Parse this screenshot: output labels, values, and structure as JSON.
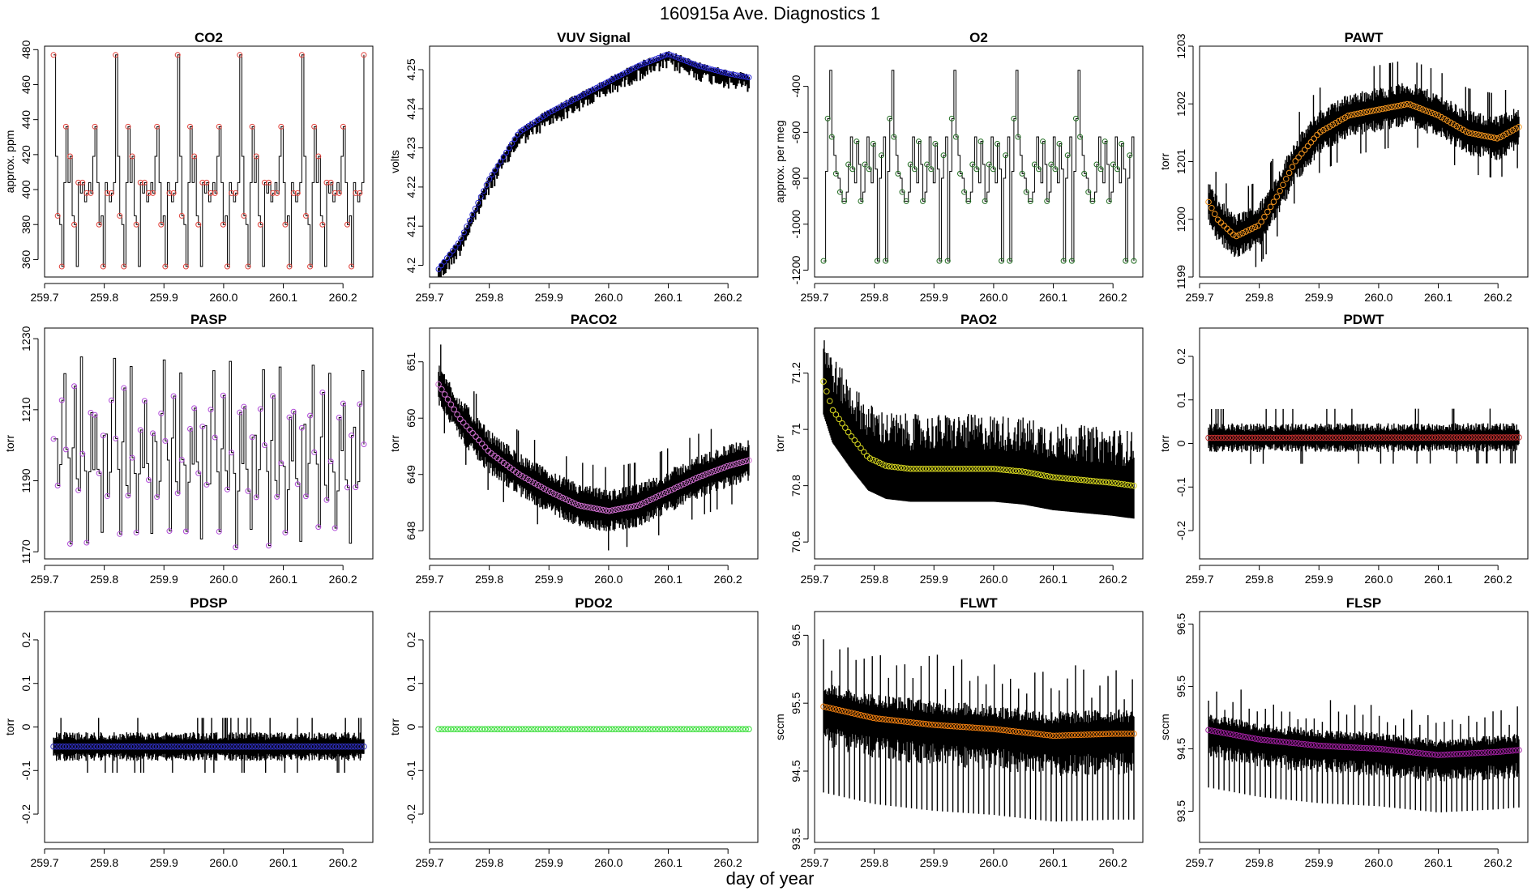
{
  "figure": {
    "title": "160915a   Ave. Diagnostics 1",
    "xlabel": "day of year"
  },
  "chart_data": [
    {
      "type": "line",
      "title": "CO2",
      "ylabel": "approx. ppm",
      "xlim": [
        259.7,
        260.25
      ],
      "ylim": [
        350,
        482
      ],
      "yticks": [
        360,
        380,
        400,
        420,
        440,
        460,
        480
      ],
      "xticks": [
        259.7,
        259.8,
        259.9,
        260.0,
        260.1,
        260.2
      ],
      "marker_color": "#e0413a",
      "pattern": "co2",
      "x_range": [
        259.715,
        260.235
      ],
      "note": "cycling calibration gas levels 356, 380, 385, 400, 404, 419, 436, 477"
    },
    {
      "type": "line",
      "title": "VUV Signal",
      "ylabel": "volts",
      "xlim": [
        259.7,
        260.25
      ],
      "ylim": [
        4.197,
        4.256
      ],
      "yticks": [
        4.2,
        4.21,
        4.22,
        4.23,
        4.24,
        4.25
      ],
      "xticks": [
        259.7,
        259.8,
        259.9,
        260.0,
        260.1,
        260.2
      ],
      "marker_color": "#2b2bd6",
      "pattern": "vuv",
      "x": [
        259.715,
        259.75,
        259.8,
        259.85,
        259.9,
        259.95,
        260.0,
        260.05,
        260.1,
        260.15,
        260.2,
        260.235
      ],
      "y": [
        4.199,
        4.206,
        4.222,
        4.234,
        4.239,
        4.243,
        4.247,
        4.251,
        4.254,
        4.251,
        4.249,
        4.248
      ]
    },
    {
      "type": "line",
      "title": "O2",
      "ylabel": "approx. per meg",
      "xlim": [
        259.7,
        260.25
      ],
      "ylim": [
        -1230,
        -225
      ],
      "yticks": [
        -1200,
        -1000,
        -800,
        -600,
        -400
      ],
      "xticks": [
        259.7,
        259.8,
        259.9,
        260.0,
        260.1,
        260.2
      ],
      "marker_color": "#1e6b1e",
      "pattern": "o2",
      "x_range": [
        259.715,
        260.235
      ],
      "note": "cycling calibration levels -1160 to -320"
    },
    {
      "type": "line",
      "title": "PAWT",
      "ylabel": "torr",
      "xlim": [
        259.7,
        260.25
      ],
      "ylim": [
        1199,
        1203
      ],
      "yticks": [
        1199,
        1200,
        1201,
        1202,
        1203
      ],
      "xticks": [
        259.7,
        259.8,
        259.9,
        260.0,
        260.1,
        260.2
      ],
      "marker_color": "#f5961e",
      "pattern": "noise",
      "x": [
        259.715,
        259.73,
        259.76,
        259.8,
        259.83,
        259.86,
        259.9,
        259.95,
        260.0,
        260.05,
        260.1,
        260.15,
        260.2,
        260.235
      ],
      "y": [
        1200.3,
        1200.0,
        1199.7,
        1199.9,
        1200.4,
        1201.0,
        1201.5,
        1201.8,
        1201.9,
        1202.0,
        1201.8,
        1201.5,
        1201.4,
        1201.6
      ],
      "spread": 0.35
    },
    {
      "type": "line",
      "title": "PASP",
      "ylabel": "torr",
      "xlim": [
        259.7,
        260.25
      ],
      "ylim": [
        1168,
        1233
      ],
      "yticks": [
        1170,
        1190,
        1210,
        1230
      ],
      "xticks": [
        259.7,
        259.8,
        259.9,
        260.0,
        260.1,
        260.2
      ],
      "marker_color": "#b04ad8",
      "pattern": "pasp",
      "x_range": [
        259.715,
        260.235
      ],
      "note": "sawtooth pressure pattern, values 1173 to 1230"
    },
    {
      "type": "line",
      "title": "PACO2",
      "ylabel": "torr",
      "xlim": [
        259.7,
        260.25
      ],
      "ylim": [
        647.5,
        651.6
      ],
      "yticks": [
        648,
        649,
        650,
        651
      ],
      "xticks": [
        259.7,
        259.8,
        259.9,
        260.0,
        260.1,
        260.2
      ],
      "marker_color": "#d06fd0",
      "pattern": "noise",
      "x": [
        259.715,
        259.75,
        259.8,
        259.85,
        259.9,
        259.95,
        260.0,
        260.05,
        260.1,
        260.15,
        260.2,
        260.235
      ],
      "y": [
        650.6,
        650.0,
        649.4,
        649.0,
        648.7,
        648.45,
        648.35,
        648.45,
        648.7,
        648.95,
        649.15,
        649.25
      ],
      "spread": 0.35
    },
    {
      "type": "line",
      "title": "PAO2",
      "ylabel": "torr",
      "xlim": [
        259.7,
        260.25
      ],
      "ylim": [
        70.54,
        71.36
      ],
      "yticks": [
        70.6,
        70.8,
        71.0,
        71.2
      ],
      "xticks": [
        259.7,
        259.8,
        259.9,
        260.0,
        260.1,
        260.2
      ],
      "marker_color": "#d8d820",
      "pattern": "pao2",
      "x": [
        259.715,
        259.73,
        259.76,
        259.79,
        259.82,
        259.86,
        259.9,
        259.95,
        260.0,
        260.05,
        260.1,
        260.15,
        260.2,
        260.235
      ],
      "y": [
        71.17,
        71.07,
        70.98,
        70.9,
        70.87,
        70.86,
        70.86,
        70.86,
        70.86,
        70.85,
        70.83,
        70.82,
        70.81,
        70.8
      ],
      "spread": 0.13
    },
    {
      "type": "line",
      "title": "PDWT",
      "ylabel": "torr",
      "xlim": [
        259.7,
        260.25
      ],
      "ylim": [
        -0.265,
        0.265
      ],
      "yticks": [
        -0.2,
        -0.1,
        0.0,
        0.1,
        0.2
      ],
      "xticks": [
        259.7,
        259.8,
        259.9,
        260.0,
        260.1,
        260.2
      ],
      "marker_color": "#c43030",
      "pattern": "noise",
      "x": [
        259.715,
        260.235
      ],
      "y": [
        0.013,
        0.014
      ],
      "spread": 0.03
    },
    {
      "type": "line",
      "title": "PDSP",
      "ylabel": "torr",
      "xlim": [
        259.7,
        260.25
      ],
      "ylim": [
        -0.265,
        0.265
      ],
      "yticks": [
        -0.2,
        -0.1,
        0.0,
        0.1,
        0.2
      ],
      "xticks": [
        259.7,
        259.8,
        259.9,
        260.0,
        260.1,
        260.2
      ],
      "marker_color": "#3030c0",
      "pattern": "noise",
      "x": [
        259.715,
        260.235
      ],
      "y": [
        -0.045,
        -0.045
      ],
      "spread": 0.03
    },
    {
      "type": "line",
      "title": "PDO2",
      "ylabel": "torr",
      "xlim": [
        259.7,
        260.25
      ],
      "ylim": [
        -0.265,
        0.265
      ],
      "yticks": [
        -0.2,
        -0.1,
        0.0,
        0.1,
        0.2
      ],
      "xticks": [
        259.7,
        259.8,
        259.9,
        260.0,
        260.1,
        260.2
      ],
      "marker_color": "#33dd33",
      "pattern": "flat",
      "x": [
        259.715,
        260.235
      ],
      "y": [
        -0.005,
        -0.005
      ],
      "spread": 0.0
    },
    {
      "type": "line",
      "title": "FLWT",
      "ylabel": "sccm",
      "xlim": [
        259.7,
        260.25
      ],
      "ylim": [
        93.45,
        96.85
      ],
      "yticks": [
        93.5,
        94.5,
        95.5,
        96.5
      ],
      "xticks": [
        259.7,
        259.8,
        259.9,
        260.0,
        260.1,
        260.2
      ],
      "marker_color": "#f07f10",
      "pattern": "flow",
      "x": [
        259.715,
        259.8,
        259.9,
        260.0,
        260.1,
        260.2,
        260.235
      ],
      "y": [
        95.45,
        95.28,
        95.18,
        95.12,
        95.02,
        95.05,
        95.05
      ],
      "spread": 0.55
    },
    {
      "type": "line",
      "title": "FLSP",
      "ylabel": "sccm",
      "xlim": [
        259.7,
        260.25
      ],
      "ylim": [
        93.0,
        96.7
      ],
      "yticks": [
        93.5,
        94.5,
        95.5,
        96.5
      ],
      "xticks": [
        259.7,
        259.8,
        259.9,
        260.0,
        260.1,
        260.2
      ],
      "marker_color": "#a020a0",
      "pattern": "flow",
      "x": [
        259.715,
        259.8,
        259.9,
        260.0,
        260.1,
        260.2,
        260.235
      ],
      "y": [
        94.8,
        94.65,
        94.55,
        94.5,
        94.4,
        94.45,
        94.48
      ],
      "spread": 0.4
    }
  ]
}
